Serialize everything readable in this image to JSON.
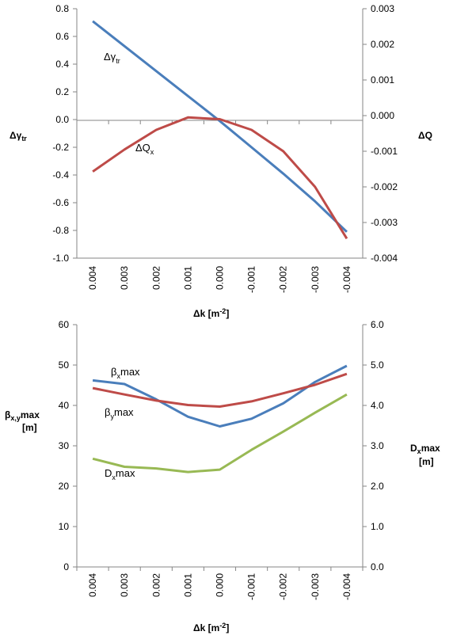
{
  "chart_data": [
    {
      "type": "line",
      "categories": [
        "0.004",
        "0.003",
        "0.002",
        "0.001",
        "0.000",
        "-0.001",
        "-0.002",
        "-0.003",
        "-0.004"
      ],
      "xlabel": "Δk [m",
      "xlabel_sup": "-2",
      "xlabel_tail": "]",
      "ylabel": "Δγ",
      "ylabel_sub": "tr",
      "y2label": "ΔQ",
      "ylim": [
        -1.0,
        0.8
      ],
      "y2lim": [
        -0.004,
        0.003
      ],
      "yticks": [
        "0.8",
        "0.6",
        "0.4",
        "0.2",
        "0.0",
        "-0.2",
        "-0.4",
        "-0.6",
        "-0.8",
        "-1.0"
      ],
      "y2ticks": [
        "0.003",
        "0.002",
        "0.001",
        "0.000",
        "-0.001",
        "-0.002",
        "-0.003",
        "-0.004"
      ],
      "grid": false,
      "series": [
        {
          "name": "Δγtr",
          "axis": "left",
          "color": "#4a7ebb",
          "values": [
            0.71,
            0.53,
            0.35,
            0.17,
            -0.01,
            -0.2,
            -0.39,
            -0.59,
            -0.81
          ]
        },
        {
          "name": "ΔQx",
          "axis": "right",
          "color": "#be4b48",
          "values": [
            -0.00157,
            -0.00095,
            -0.0004,
            -5e-05,
            -0.0001,
            -0.0004,
            -0.001,
            -0.002,
            -0.00345
          ]
        }
      ],
      "annotations": [
        {
          "text": "Δγ",
          "sub": "tr"
        },
        {
          "text": "ΔQ",
          "sub": "x"
        }
      ]
    },
    {
      "type": "line",
      "categories": [
        "0.004",
        "0.003",
        "0.002",
        "0.001",
        "0.000",
        "-0.001",
        "-0.002",
        "-0.003",
        "-0.004"
      ],
      "xlabel": "Δk [m",
      "xlabel_sup": "-2",
      "xlabel_tail": "]",
      "ylabel_line1": "β",
      "ylabel_sub": "x,y",
      "ylabel_tail": "max",
      "ylabel_line2": "[m]",
      "y2label_line1": "D",
      "y2label_sub": "x",
      "y2label_tail": "max",
      "y2label_line2": "[m]",
      "ylim": [
        0,
        60
      ],
      "y2lim": [
        0,
        6
      ],
      "yticks": [
        "60",
        "50",
        "40",
        "30",
        "20",
        "10",
        "0"
      ],
      "y2ticks": [
        "6.0",
        "5.0",
        "4.0",
        "3.0",
        "2.0",
        "1.0",
        "0.0"
      ],
      "grid": false,
      "series": [
        {
          "name": "βxmax",
          "axis": "left",
          "color": "#4a7ebb",
          "values": [
            46.2,
            45.3,
            41.5,
            37.2,
            34.8,
            36.7,
            40.5,
            45.8,
            49.8
          ]
        },
        {
          "name": "βymax",
          "axis": "left",
          "color": "#be4b48",
          "values": [
            44.3,
            42.7,
            41.2,
            40.1,
            39.7,
            41.0,
            43.0,
            45.1,
            47.8
          ]
        },
        {
          "name": "Dxmax",
          "axis": "right",
          "color": "#98b954",
          "values": [
            2.68,
            2.48,
            2.44,
            2.35,
            2.41,
            2.9,
            3.35,
            3.82,
            4.27
          ]
        }
      ],
      "annotations": [
        {
          "text": "β",
          "sub": "x",
          "tail": "max"
        },
        {
          "text": "β",
          "sub": "y",
          "tail": "max"
        },
        {
          "text": "D",
          "sub": "x",
          "tail": "max"
        }
      ]
    }
  ]
}
